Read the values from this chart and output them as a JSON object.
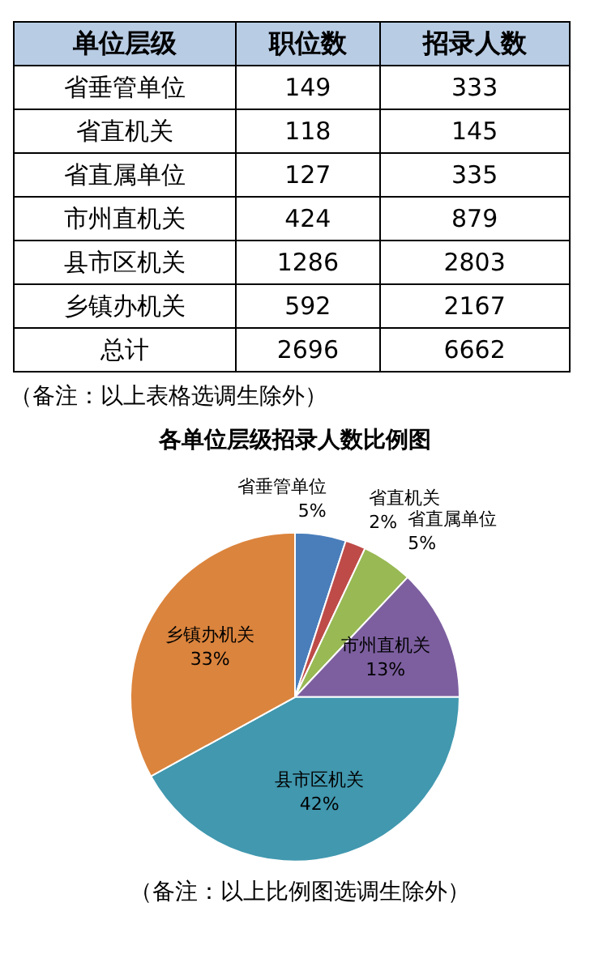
{
  "chart_data": [
    {
      "type": "other",
      "xlabel": "单位层级",
      "categories": [
        "省垂管单位",
        "省直机关",
        "省直属单位",
        "市州直机关",
        "县市区机关",
        "乡镇办机关",
        "总计"
      ],
      "series": [
        {
          "name": "职位数",
          "values": [
            149,
            118,
            127,
            424,
            1286,
            592,
            2696
          ]
        },
        {
          "name": "招录人数",
          "values": [
            333,
            145,
            335,
            879,
            2803,
            2167,
            6662
          ]
        }
      ],
      "data_labels": true,
      "annotations": [
        "（备注：以上表格选调生除外）"
      ]
    },
    {
      "type": "pie",
      "title": "各单位层级招录人数比例图",
      "categories": [
        "省垂管单位",
        "省直机关",
        "省直属单位",
        "市州直机关",
        "县市区机关",
        "乡镇办机关"
      ],
      "values": [
        5,
        2,
        5,
        13,
        42,
        33
      ],
      "colors": [
        "#4a7ebb",
        "#be4b48",
        "#98b954",
        "#7d5fa0",
        "#4198af",
        "#db843d"
      ],
      "value_labels": [
        "5%",
        "2%",
        "5%",
        "13%",
        "42%",
        "33%"
      ],
      "legend": false,
      "annotations": [
        "（备注：以上比例图选调生除外）"
      ]
    }
  ]
}
